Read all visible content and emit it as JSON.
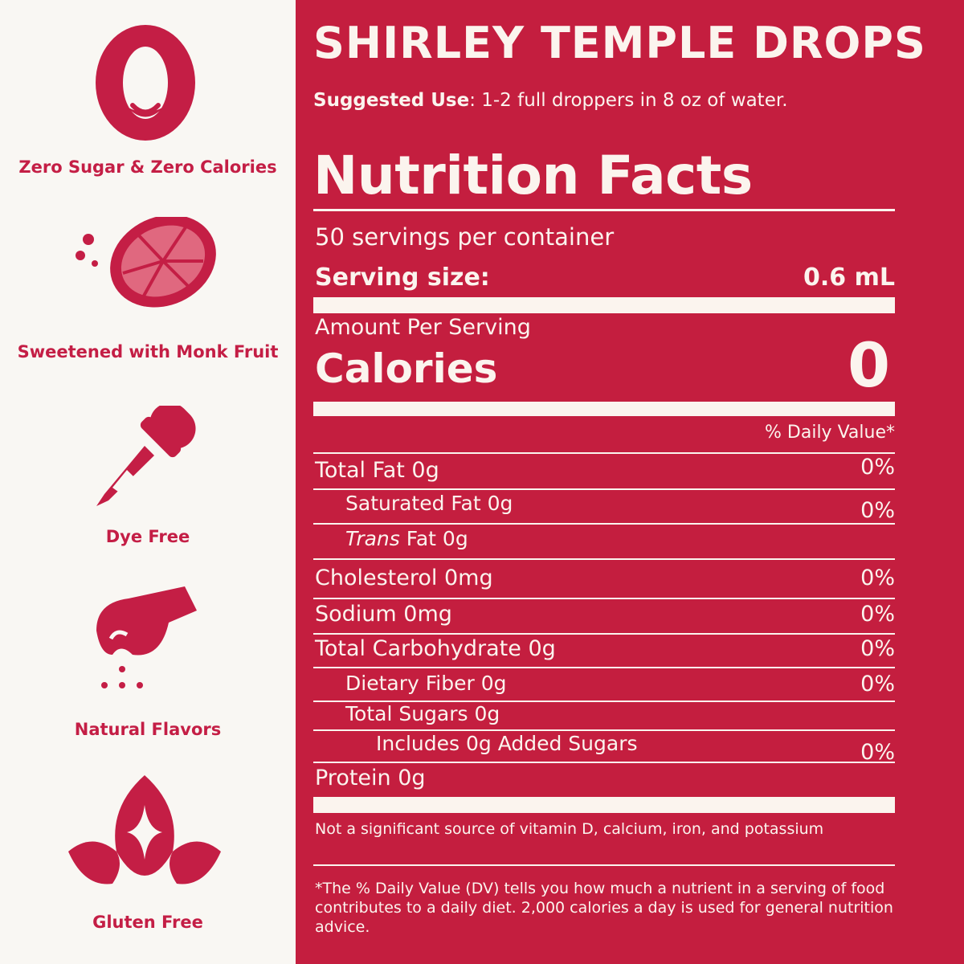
{
  "features": [
    {
      "icon": "zero-smile-icon",
      "caption": "Zero Sugar & Zero Calories"
    },
    {
      "icon": "grapefruit-icon",
      "caption": "Sweetened with Monk Fruit"
    },
    {
      "icon": "dropper-icon",
      "caption": "Dye Free"
    },
    {
      "icon": "pinch-hand-icon",
      "caption": "Natural Flavors"
    },
    {
      "icon": "leaf-sparkle-icon",
      "caption": "Gluten Free"
    }
  ],
  "product": {
    "title": "SHIRLEY TEMPLE DROPS",
    "suggested_label": "Suggested Use",
    "suggested_text": ": 1-2 full droppers in 8 oz of water."
  },
  "label": {
    "heading": "Nutrition Facts",
    "servings": "50 servings per container",
    "serving_size_label": "Serving size:",
    "serving_size_value": "0.6 mL",
    "amount_per_serving": "Amount Per Serving",
    "calories_label": "Calories",
    "calories_value": "0",
    "daily_value_header": "% Daily Value*",
    "nutrients": [
      {
        "name": "Total Fat 0g",
        "dv": "0%"
      },
      {
        "name": "Saturated Fat 0g",
        "dv": "0%"
      },
      {
        "name_italic": "Trans",
        "name": " Fat 0g",
        "dv": ""
      },
      {
        "name": "Cholesterol 0mg",
        "dv": "0%"
      },
      {
        "name": "Sodium 0mg",
        "dv": "0%"
      },
      {
        "name": "Total Carbohydrate 0g",
        "dv": "0%"
      },
      {
        "name": "Dietary Fiber 0g",
        "dv": "0%"
      },
      {
        "name": "Total Sugars 0g",
        "dv": ""
      },
      {
        "name": "Includes 0g Added Sugars",
        "dv": "0%"
      },
      {
        "name": "Protein 0g",
        "dv": ""
      }
    ],
    "not_significant": "Not a significant source of vitamin D, calcium, iron, and potassium",
    "footnote": "*The % Daily Value (DV) tells you how much a nutrient in a serving of food contributes to a daily diet. 2,000 calories a day is used for general nutrition advice."
  },
  "colors": {
    "brand_red": "#c41e3f",
    "background": "#f9f7f3",
    "text_light": "#fbf4ee"
  }
}
